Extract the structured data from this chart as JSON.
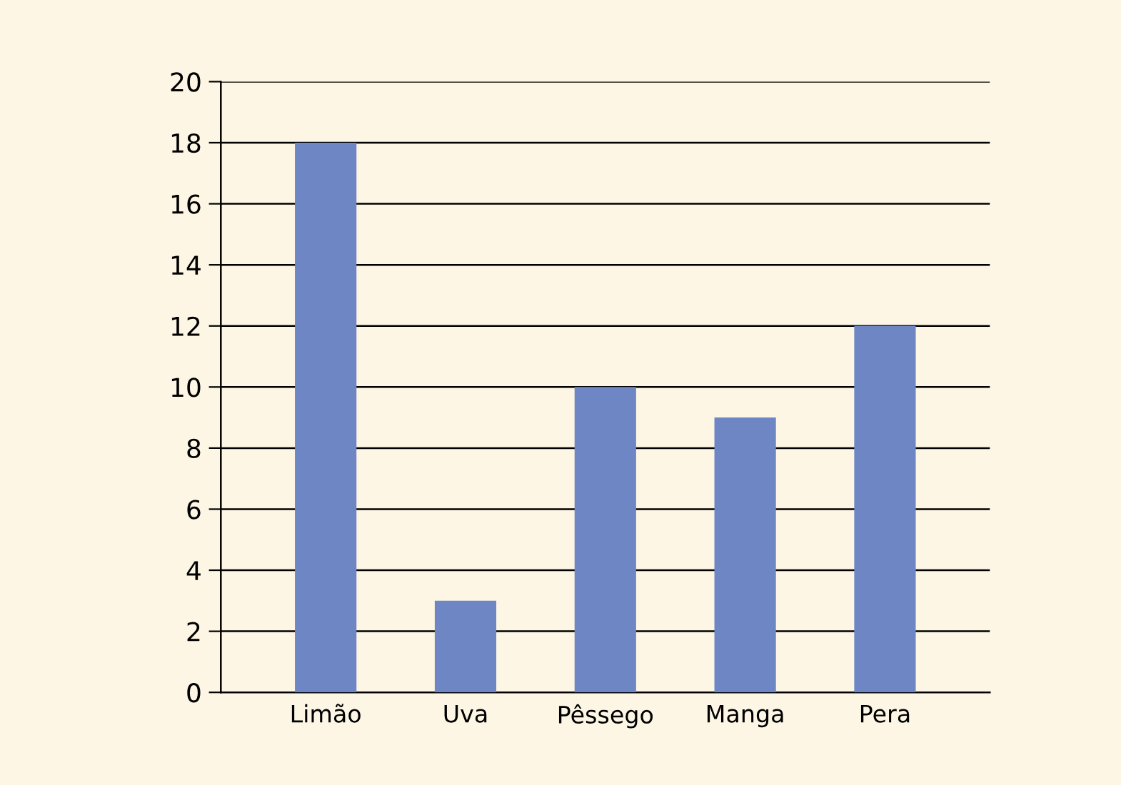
{
  "chart_data": {
    "type": "bar",
    "categories": [
      "Limão",
      "Uva",
      "Pêssego",
      "Manga",
      "Pera"
    ],
    "values": [
      18,
      3,
      10,
      9,
      12
    ],
    "color": "#6e86c4",
    "ylim": [
      0,
      20
    ],
    "yticks": [
      0,
      2,
      4,
      6,
      8,
      10,
      12,
      14,
      16,
      18,
      20
    ],
    "grid": "y",
    "legend": false
  }
}
